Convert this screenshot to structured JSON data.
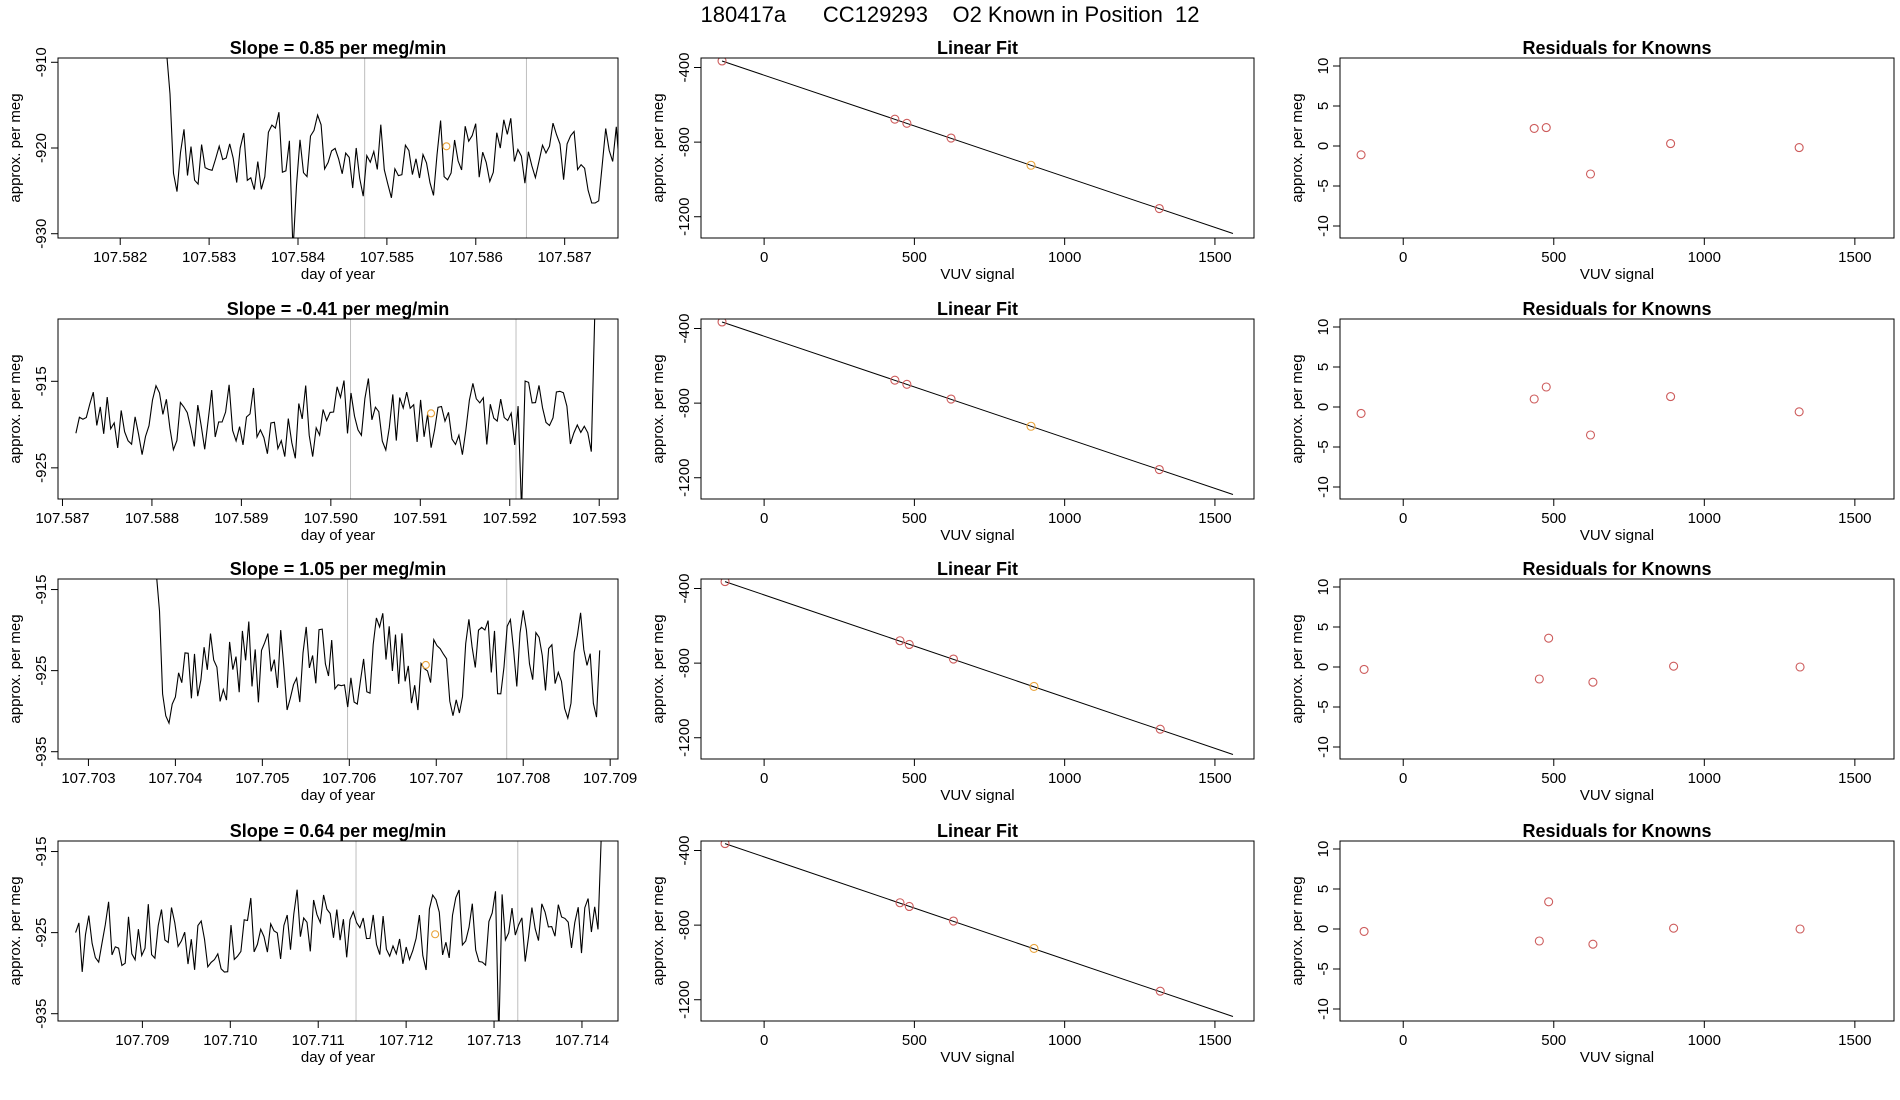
{
  "title": {
    "run_id": "180417a",
    "cylinder": "CC129293",
    "description": "O2 Known in Position  12"
  },
  "colors": {
    "trace": "#000000",
    "gridline": "#bebebe",
    "known_point": "#cd5c5c",
    "highlight_point": "#e8a33a"
  },
  "chart_data": [
    {
      "type": "line",
      "row": 1,
      "title_prefix": "Slope = ",
      "slope": "0.85",
      "title_suffix": " per meg/min",
      "xlabel": "day of year",
      "ylabel": "approx. per meg",
      "xlim": [
        107.5813,
        107.5876
      ],
      "ylim": [
        -930.5,
        -909.5
      ],
      "xticks": [
        "107.582",
        "107.583",
        "107.584",
        "107.585",
        "107.586",
        "107.587"
      ],
      "yticks": [
        "-910",
        "-920",
        "-930"
      ],
      "vlines": [
        107.58475,
        107.58657
      ],
      "trace": {
        "start": 107.58252,
        "end": 107.58762,
        "n": 130,
        "mean": -920.8,
        "amp": 2.6,
        "start_value": -908.6,
        "end_value": -922.8,
        "seed": 11
      },
      "highlight": {
        "x": 107.58567,
        "y": -919.8
      },
      "dips": [
        {
          "x": 107.58395,
          "y": -932
        }
      ]
    },
    {
      "type": "scatter",
      "row": 1,
      "title": "Linear Fit",
      "xlabel": "VUV signal",
      "ylabel": "approx. per meg",
      "xlim": [
        -210,
        1630
      ],
      "ylim": [
        -1314,
        -349
      ],
      "xticks": [
        "0",
        "500",
        "1000",
        "1500"
      ],
      "yticks": [
        "-400",
        "-800",
        "-1200"
      ],
      "fit_line": {
        "x": [
          -140,
          1560
        ],
        "y": [
          -365,
          -1290
        ]
      },
      "points": [
        {
          "x": -140,
          "y": -365,
          "c": "known"
        },
        {
          "x": 435,
          "y": -677,
          "c": "known"
        },
        {
          "x": 475,
          "y": -699,
          "c": "known"
        },
        {
          "x": 622,
          "y": -778,
          "c": "known"
        },
        {
          "x": 888,
          "y": -924,
          "c": "highlight"
        },
        {
          "x": 1315,
          "y": -1156,
          "c": "known"
        }
      ]
    },
    {
      "type": "scatter",
      "row": 1,
      "title": "Residuals for Knowns",
      "xlabel": "VUV signal",
      "ylabel": "approx. per meg",
      "xlim": [
        -210,
        1630
      ],
      "ylim": [
        -11.5,
        11
      ],
      "xticks": [
        "0",
        "500",
        "1000",
        "1500"
      ],
      "yticks": [
        "10",
        "5",
        "0",
        "-5",
        "-10"
      ],
      "points": [
        {
          "x": -140,
          "y": -1.1,
          "c": "known"
        },
        {
          "x": 435,
          "y": 2.2,
          "c": "known"
        },
        {
          "x": 475,
          "y": 2.3,
          "c": "known"
        },
        {
          "x": 622,
          "y": -3.5,
          "c": "known"
        },
        {
          "x": 888,
          "y": 0.3,
          "c": "known"
        },
        {
          "x": 1315,
          "y": -0.2,
          "c": "known"
        }
      ]
    },
    {
      "type": "line",
      "row": 2,
      "title_prefix": "Slope = ",
      "slope": " -0.41",
      "title_suffix": " per meg/min",
      "xlabel": "day of year",
      "ylabel": "approx. per meg",
      "xlim": [
        107.58695,
        107.59321
      ],
      "ylim": [
        -928.6,
        -907.8
      ],
      "xticks": [
        "107.587",
        "107.588",
        "107.589",
        "107.590",
        "107.591",
        "107.592",
        "107.593"
      ],
      "yticks": [
        "-915",
        "-925"
      ],
      "vlines": [
        107.59022,
        107.59207
      ],
      "trace": {
        "start": 107.58715,
        "end": 107.59295,
        "n": 150,
        "mean": -919.3,
        "amp": 2.4,
        "start_value": -921,
        "end_value": -907.6,
        "seed": 23
      },
      "highlight": {
        "x": 107.59112,
        "y": -918.7
      },
      "dips": [
        {
          "x": 107.59213,
          "y": -930
        }
      ]
    },
    {
      "type": "scatter",
      "row": 2,
      "title": "Linear Fit",
      "xlabel": "VUV signal",
      "ylabel": "approx. per meg",
      "xlim": [
        -210,
        1630
      ],
      "ylim": [
        -1314,
        -349
      ],
      "xticks": [
        "0",
        "500",
        "1000",
        "1500"
      ],
      "yticks": [
        "-400",
        "-800",
        "-1200"
      ],
      "fit_line": {
        "x": [
          -140,
          1560
        ],
        "y": [
          -365,
          -1290
        ]
      },
      "points": [
        {
          "x": -140,
          "y": -365,
          "c": "known"
        },
        {
          "x": 435,
          "y": -677,
          "c": "known"
        },
        {
          "x": 475,
          "y": -699,
          "c": "known"
        },
        {
          "x": 622,
          "y": -778,
          "c": "known"
        },
        {
          "x": 888,
          "y": -924,
          "c": "highlight"
        },
        {
          "x": 1315,
          "y": -1156,
          "c": "known"
        }
      ]
    },
    {
      "type": "scatter",
      "row": 2,
      "title": "Residuals for Knowns",
      "xlabel": "VUV signal",
      "ylabel": "approx. per meg",
      "xlim": [
        -210,
        1630
      ],
      "ylim": [
        -11.5,
        11
      ],
      "xticks": [
        "0",
        "500",
        "1000",
        "1500"
      ],
      "yticks": [
        "10",
        "5",
        "0",
        "-5",
        "-10"
      ],
      "points": [
        {
          "x": -140,
          "y": -0.8,
          "c": "known"
        },
        {
          "x": 435,
          "y": 1.0,
          "c": "known"
        },
        {
          "x": 475,
          "y": 2.5,
          "c": "known"
        },
        {
          "x": 622,
          "y": -3.5,
          "c": "known"
        },
        {
          "x": 888,
          "y": 1.3,
          "c": "known"
        },
        {
          "x": 1315,
          "y": -0.6,
          "c": "known"
        }
      ]
    },
    {
      "type": "line",
      "row": 3,
      "title_prefix": "Slope = ",
      "slope": "1.05",
      "title_suffix": " per meg/min",
      "xlabel": "day of year",
      "ylabel": "approx. per meg",
      "xlim": [
        107.70265,
        107.70909
      ],
      "ylim": [
        -935.9,
        -913.7
      ],
      "xticks": [
        "107.703",
        "107.704",
        "107.705",
        "107.706",
        "107.707",
        "107.708",
        "107.709"
      ],
      "yticks": [
        "-915",
        "-925",
        "-935"
      ],
      "vlines": [
        107.70598,
        107.70781
      ],
      "trace": {
        "start": 107.70378,
        "end": 107.70888,
        "n": 140,
        "mean": -924.3,
        "amp": 3.4,
        "start_value": -913,
        "end_value": -922.5,
        "seed": 37
      },
      "highlight": {
        "x": 107.70688,
        "y": -924.3
      },
      "dips": []
    },
    {
      "type": "scatter",
      "row": 3,
      "title": "Linear Fit",
      "xlabel": "VUV signal",
      "ylabel": "approx. per meg",
      "xlim": [
        -210,
        1630
      ],
      "ylim": [
        -1314,
        -349
      ],
      "xticks": [
        "0",
        "500",
        "1000",
        "1500"
      ],
      "yticks": [
        "-400",
        "-800",
        "-1200"
      ],
      "fit_line": {
        "x": [
          -130,
          1560
        ],
        "y": [
          -363,
          -1290
        ]
      },
      "points": [
        {
          "x": -130,
          "y": -363,
          "c": "known"
        },
        {
          "x": 452,
          "y": -680,
          "c": "known"
        },
        {
          "x": 483,
          "y": -700,
          "c": "known"
        },
        {
          "x": 630,
          "y": -778,
          "c": "known"
        },
        {
          "x": 898,
          "y": -925,
          "c": "highlight"
        },
        {
          "x": 1318,
          "y": -1154,
          "c": "known"
        }
      ]
    },
    {
      "type": "scatter",
      "row": 3,
      "title": "Residuals for Knowns",
      "xlabel": "VUV signal",
      "ylabel": "approx. per meg",
      "xlim": [
        -210,
        1630
      ],
      "ylim": [
        -11.5,
        11
      ],
      "xticks": [
        "0",
        "500",
        "1000",
        "1500"
      ],
      "yticks": [
        "10",
        "5",
        "0",
        "-5",
        "-10"
      ],
      "points": [
        {
          "x": -130,
          "y": -0.3,
          "c": "known"
        },
        {
          "x": 452,
          "y": -1.5,
          "c": "known"
        },
        {
          "x": 483,
          "y": 3.6,
          "c": "known"
        },
        {
          "x": 630,
          "y": -1.9,
          "c": "known"
        },
        {
          "x": 898,
          "y": 0.1,
          "c": "known"
        },
        {
          "x": 1318,
          "y": 0.0,
          "c": "known"
        }
      ]
    },
    {
      "type": "line",
      "row": 4,
      "title_prefix": "Slope = ",
      "slope": "0.64",
      "title_suffix": " per meg/min",
      "xlabel": "day of year",
      "ylabel": "approx. per meg",
      "xlim": [
        107.70804,
        107.71441
      ],
      "ylim": [
        -935.9,
        -913.7
      ],
      "xticks": [
        "107.709",
        "107.710",
        "107.711",
        "107.712",
        "107.713",
        "107.714"
      ],
      "yticks": [
        "-915",
        "-925",
        "-935"
      ],
      "vlines": [
        107.71143,
        107.71327
      ],
      "trace": {
        "start": 107.70824,
        "end": 107.71422,
        "n": 160,
        "mean": -924.6,
        "amp": 2.9,
        "start_value": -925,
        "end_value": -913,
        "seed": 53
      },
      "highlight": {
        "x": 107.71233,
        "y": -925.2
      },
      "dips": [
        {
          "x": 107.71307,
          "y": -938
        }
      ]
    },
    {
      "type": "scatter",
      "row": 4,
      "title": "Linear Fit",
      "xlabel": "VUV signal",
      "ylabel": "approx. per meg",
      "xlim": [
        -210,
        1630
      ],
      "ylim": [
        -1314,
        -349
      ],
      "xticks": [
        "0",
        "500",
        "1000",
        "1500"
      ],
      "yticks": [
        "-400",
        "-800",
        "-1200"
      ],
      "fit_line": {
        "x": [
          -130,
          1560
        ],
        "y": [
          -363,
          -1290
        ]
      },
      "points": [
        {
          "x": -130,
          "y": -363,
          "c": "known"
        },
        {
          "x": 452,
          "y": -680,
          "c": "known"
        },
        {
          "x": 483,
          "y": -700,
          "c": "known"
        },
        {
          "x": 630,
          "y": -778,
          "c": "known"
        },
        {
          "x": 898,
          "y": -925,
          "c": "highlight"
        },
        {
          "x": 1318,
          "y": -1154,
          "c": "known"
        }
      ]
    },
    {
      "type": "scatter",
      "row": 4,
      "title": "Residuals for Knowns",
      "xlabel": "VUV signal",
      "ylabel": "approx. per meg",
      "xlim": [
        -210,
        1630
      ],
      "ylim": [
        -11.5,
        11
      ],
      "xticks": [
        "0",
        "500",
        "1000",
        "1500"
      ],
      "yticks": [
        "10",
        "5",
        "0",
        "-5",
        "-10"
      ],
      "points": [
        {
          "x": -130,
          "y": -0.3,
          "c": "known"
        },
        {
          "x": 452,
          "y": -1.5,
          "c": "known"
        },
        {
          "x": 483,
          "y": 3.4,
          "c": "known"
        },
        {
          "x": 630,
          "y": -1.9,
          "c": "known"
        },
        {
          "x": 898,
          "y": 0.1,
          "c": "known"
        },
        {
          "x": 1318,
          "y": 0.0,
          "c": "known"
        }
      ]
    }
  ]
}
